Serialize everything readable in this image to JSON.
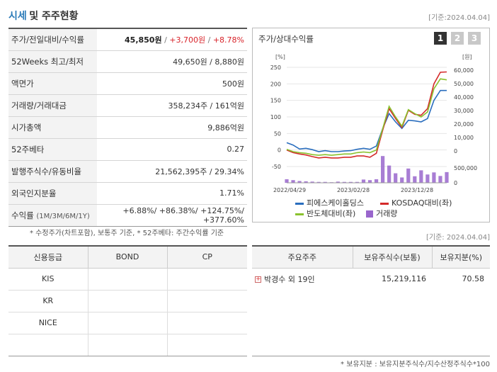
{
  "header": {
    "title_part1": "시세",
    "title_part2": "및 주주현황",
    "std_date": "[기준:2024.04.04]"
  },
  "quote": {
    "rows": [
      {
        "label": "주가/전일대비/수익률",
        "price": "45,850원",
        "sep1": " / ",
        "change": "+3,700원",
        "sep2": " / ",
        "pct": "+8.78%"
      },
      {
        "label": "52Weeks 최고/최저",
        "value": "49,650원 / 8,880원"
      },
      {
        "label": "액면가",
        "value": "500원"
      },
      {
        "label": "거래량/거래대금",
        "value": "358,234주 / 161억원"
      },
      {
        "label": "시가총액",
        "value": "9,886억원"
      },
      {
        "label": "52주베타",
        "value": "0.27"
      },
      {
        "label": "발행주식수/유동비율",
        "value": "21,562,395주 / 29.34%"
      },
      {
        "label": "외국인지분율",
        "value": "1.71%"
      },
      {
        "label": "수익률",
        "label_sub": "(1M/3M/6M/1Y)",
        "value": "+6.88%/ +86.38%/ +124.75%/ +377.60%"
      }
    ],
    "footnote": "* 수정주가(차트포함), 보통주 기준, * 52주베타: 주간수익률 기준"
  },
  "chart_panel": {
    "title": "주가/상대수익률",
    "tabs": [
      "1",
      "2",
      "3"
    ],
    "active_tab": 0,
    "legend": [
      {
        "name": "피에스케이홀딩스",
        "color": "#2a6ebe",
        "kind": "line"
      },
      {
        "name": "KOSDAQ대비(좌)",
        "color": "#d42a2a",
        "kind": "line"
      },
      {
        "name": "반도체대비(좌)",
        "color": "#8ac22e",
        "kind": "line"
      },
      {
        "name": "거래량",
        "color": "#9966cc",
        "kind": "bar"
      }
    ],
    "std_date": "[기준: 2024.04.04]"
  },
  "chart_data": {
    "type": "line",
    "left_axis": {
      "unit": "[%]",
      "ticks": [
        "250",
        "200",
        "150",
        "100",
        "50",
        "0",
        "-50"
      ],
      "range": [
        -50,
        250
      ]
    },
    "right_axis": {
      "unit": "[원]",
      "ticks": [
        "60,000",
        "50,000",
        "40,000",
        "30,000",
        "20,000",
        "10,000",
        "0"
      ],
      "range": [
        0,
        60000
      ]
    },
    "volume_axis": {
      "ticks": [
        "500,000",
        "0"
      ],
      "range": [
        0,
        1000000
      ]
    },
    "x_labels": [
      "2022/04/29",
      "2023/02/28",
      "2023/12/28"
    ],
    "series": [
      {
        "name": "피에스케이홀딩스",
        "color": "#2a6ebe",
        "axis": "left",
        "values": [
          22,
          15,
          3,
          5,
          1,
          -5,
          -2,
          -5,
          -5,
          -3,
          -2,
          2,
          5,
          2,
          12,
          65,
          110,
          85,
          65,
          90,
          88,
          85,
          95,
          150,
          180,
          180
        ]
      },
      {
        "name": "KOSDAQ대비(좌)",
        "color": "#d42a2a",
        "axis": "left",
        "values": [
          0,
          -8,
          -12,
          -15,
          -20,
          -24,
          -22,
          -24,
          -24,
          -22,
          -22,
          -18,
          -18,
          -22,
          -10,
          60,
          125,
          95,
          68,
          120,
          108,
          105,
          125,
          200,
          235,
          236
        ]
      },
      {
        "name": "반도체대비(좌)",
        "color": "#8ac22e",
        "axis": "left",
        "values": [
          2,
          -5,
          -8,
          -10,
          -14,
          -16,
          -14,
          -16,
          -14,
          -12,
          -12,
          -8,
          -6,
          -8,
          0,
          65,
          132,
          100,
          72,
          122,
          110,
          100,
          115,
          185,
          215,
          212
        ]
      },
      {
        "name": "거래량",
        "color": "#9966cc",
        "axis": "volume",
        "values": [
          120000,
          90000,
          60000,
          50000,
          40000,
          30000,
          30000,
          20000,
          40000,
          30000,
          30000,
          30000,
          110000,
          90000,
          120000,
          900000,
          580000,
          320000,
          180000,
          480000,
          220000,
          420000,
          280000,
          350000,
          230000,
          360000
        ]
      }
    ]
  },
  "credit": {
    "headers": [
      "신용등급",
      "BOND",
      "CP"
    ],
    "rows": [
      [
        "KIS",
        "",
        ""
      ],
      [
        "KR",
        "",
        ""
      ],
      [
        "NICE",
        "",
        ""
      ],
      [
        "",
        "",
        ""
      ]
    ]
  },
  "holders": {
    "headers": [
      "주요주주",
      "보유주식수(보통)",
      "보유지분(%)"
    ],
    "rows": [
      {
        "name": "박경수 외 19인",
        "shares": "15,219,116",
        "pct": "70.58"
      }
    ],
    "footnote": "* 보유지분 : 보유지분주식수/지수산정주식수*100"
  }
}
